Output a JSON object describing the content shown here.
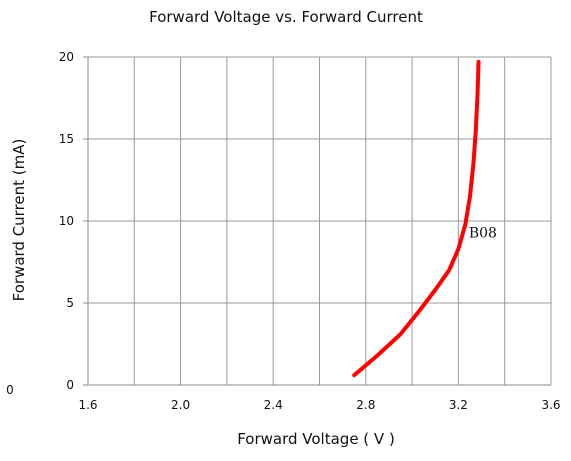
{
  "chart_data": {
    "type": "line",
    "title": "Forward Voltage vs. Forward Current",
    "xlabel": "Forward Voltage ( V )",
    "ylabel": "Forward Current (mA)",
    "xlim": [
      1.6,
      3.6
    ],
    "ylim": [
      0,
      20
    ],
    "x_ticks": [
      "1.6",
      "2.0",
      "2.4",
      "2.8",
      "3.2",
      "3.6"
    ],
    "y_ticks": [
      "0",
      "5",
      "10",
      "15",
      "20"
    ],
    "stray_tick": "0",
    "grid": true,
    "legend": "none",
    "series": [
      {
        "name": "B08",
        "color": "#ff0000",
        "x": [
          2.75,
          2.85,
          2.95,
          3.03,
          3.1,
          3.16,
          3.2,
          3.23,
          3.25,
          3.265,
          3.275,
          3.282,
          3.287
        ],
        "y": [
          0.6,
          1.8,
          3.1,
          4.5,
          5.8,
          7.0,
          8.3,
          9.8,
          11.5,
          13.5,
          15.5,
          17.5,
          19.7
        ]
      }
    ]
  }
}
